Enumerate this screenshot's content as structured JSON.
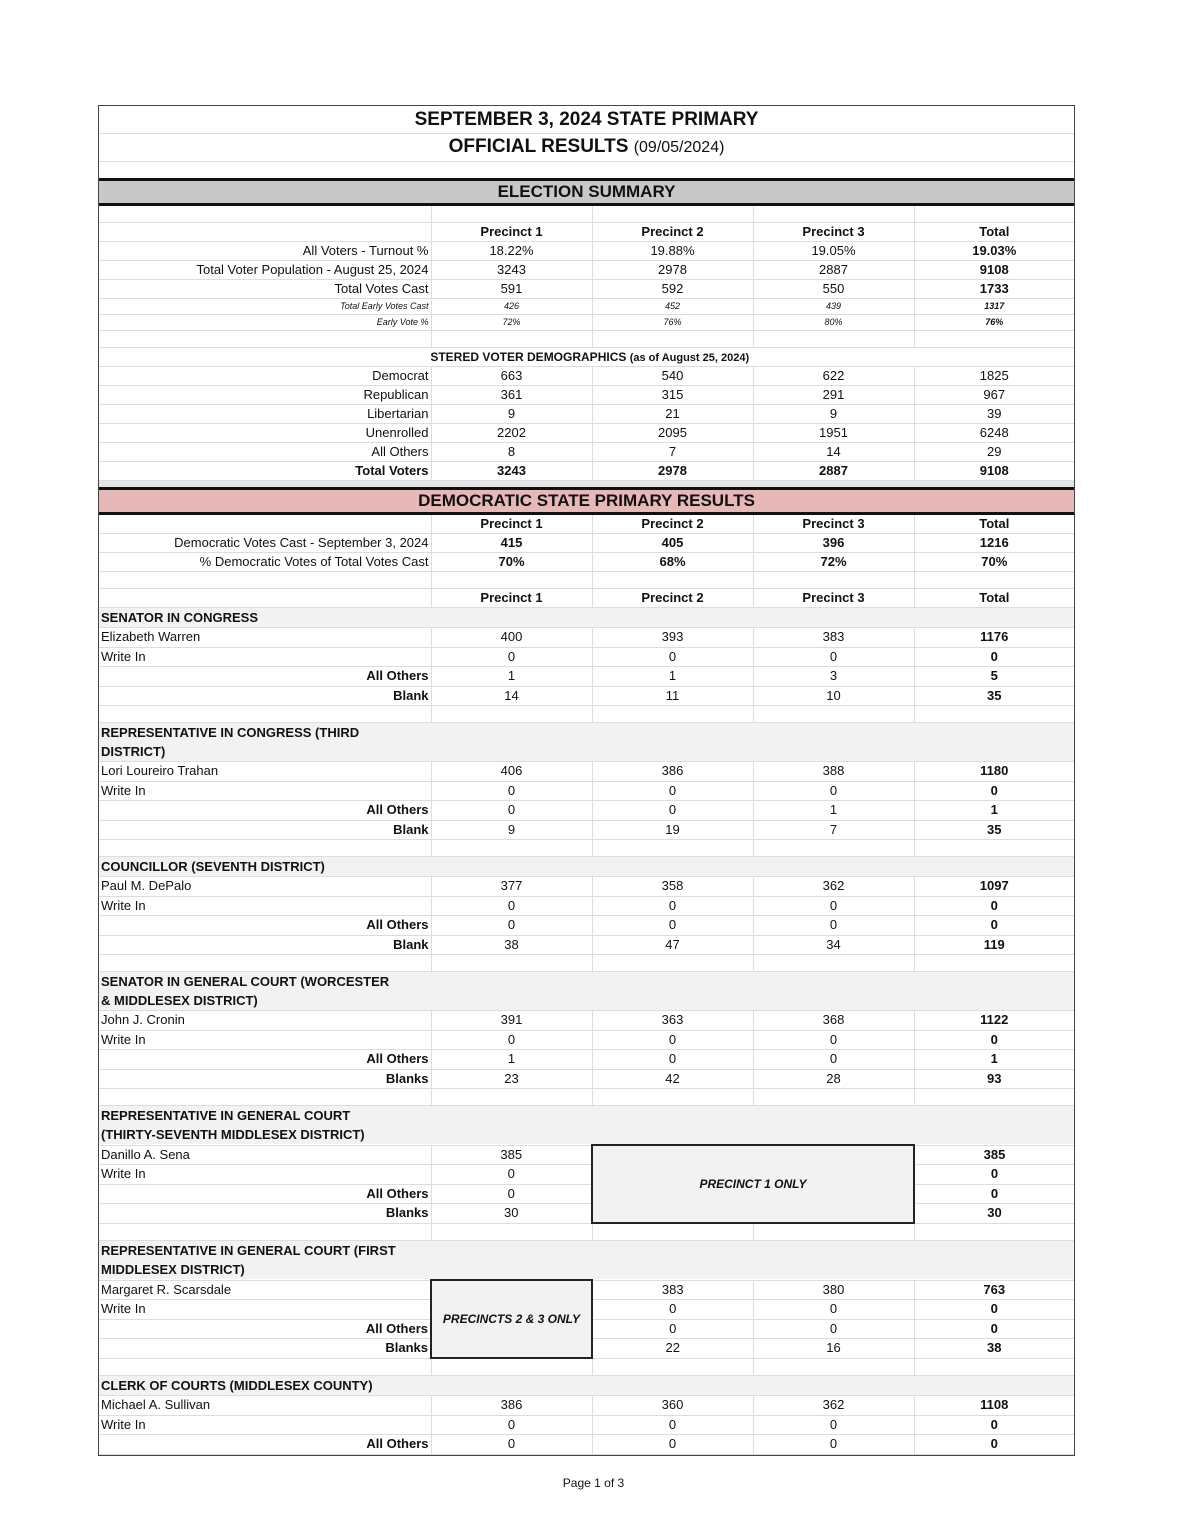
{
  "header": {
    "title": "SEPTEMBER 3, 2024 STATE PRIMARY",
    "subtitle": "OFFICIAL RESULTS",
    "subtitle_date": "(09/05/2024)"
  },
  "summary": {
    "banner": "ELECTION SUMMARY",
    "columns": [
      "Precinct 1",
      "Precinct 2",
      "Precinct 3",
      "Total"
    ],
    "rows": [
      {
        "label": "All Voters - Turnout  %",
        "values": [
          "18.22%",
          "19.88%",
          "19.05%",
          "19.03%"
        ],
        "style": "normal"
      },
      {
        "label": "Total Voter Population - August 25, 2024",
        "values": [
          "3243",
          "2978",
          "2887",
          "9108"
        ],
        "style": "normal"
      },
      {
        "label": "Total Votes Cast",
        "values": [
          "591",
          "592",
          "550",
          "1733"
        ],
        "style": "normal"
      },
      {
        "label": "Total Early Votes Cast",
        "values": [
          "426",
          "452",
          "439",
          "1317"
        ],
        "style": "small"
      },
      {
        "label": "Early Vote %",
        "values": [
          "72%",
          "76%",
          "80%",
          "76%"
        ],
        "style": "small"
      }
    ]
  },
  "demographics": {
    "title": "REGISTERED VOTER DEMOGRAPHICS",
    "note": "(as of August 25, 2024)",
    "rows": [
      {
        "label": "Democrat",
        "values": [
          "663",
          "540",
          "622",
          "1825"
        ]
      },
      {
        "label": "Republican",
        "values": [
          "361",
          "315",
          "291",
          "967"
        ]
      },
      {
        "label": "Libertarian",
        "values": [
          "9",
          "21",
          "9",
          "39"
        ]
      },
      {
        "label": "Unenrolled",
        "values": [
          "2202",
          "2095",
          "1951",
          "6248"
        ]
      },
      {
        "label": "All Others",
        "values": [
          "8",
          "7",
          "14",
          "29"
        ]
      }
    ],
    "total": {
      "label": "Total Voters",
      "values": [
        "3243",
        "2978",
        "2887",
        "9108"
      ]
    }
  },
  "democratic": {
    "banner": "DEMOCRATIC STATE PRIMARY RESULTS",
    "columns": [
      "Precinct 1",
      "Precinct 2",
      "Precinct 3",
      "Total"
    ],
    "rows": [
      {
        "label": "Democratic Votes Cast - September 3, 2024",
        "values": [
          "415",
          "405",
          "396",
          "1216"
        ]
      },
      {
        "label": "% Democratic Votes of Total Votes Cast",
        "values": [
          "70%",
          "68%",
          "72%",
          "70%"
        ]
      }
    ],
    "contest_columns": [
      "Precinct 1",
      "Precinct 2",
      "Precinct 3",
      "Total"
    ]
  },
  "contests": [
    {
      "title": "SENATOR IN CONGRESS",
      "rows": [
        {
          "label": "Elizabeth Warren",
          "values": [
            "400",
            "393",
            "383",
            "1176"
          ]
        },
        {
          "label": "Write In",
          "values": [
            "0",
            "0",
            "0",
            "0"
          ]
        },
        {
          "label": "All Others",
          "values": [
            "1",
            "1",
            "3",
            "5"
          ]
        },
        {
          "label": "Blank",
          "values": [
            "14",
            "11",
            "10",
            "35"
          ]
        }
      ]
    },
    {
      "title": "REPRESENTATIVE IN CONGRESS (THIRD DISTRICT)",
      "rows": [
        {
          "label": "Lori Loureiro Trahan",
          "values": [
            "406",
            "386",
            "388",
            "1180"
          ]
        },
        {
          "label": "Write In",
          "values": [
            "0",
            "0",
            "0",
            "0"
          ]
        },
        {
          "label": "All Others",
          "values": [
            "0",
            "0",
            "1",
            "1"
          ]
        },
        {
          "label": "Blank",
          "values": [
            "9",
            "19",
            "7",
            "35"
          ]
        }
      ]
    },
    {
      "title": "COUNCILLOR (SEVENTH DISTRICT)",
      "rows": [
        {
          "label": "Paul M. DePalo",
          "values": [
            "377",
            "358",
            "362",
            "1097"
          ]
        },
        {
          "label": "Write In",
          "values": [
            "0",
            "0",
            "0",
            "0"
          ]
        },
        {
          "label": "All Others",
          "values": [
            "0",
            "0",
            "0",
            "0"
          ]
        },
        {
          "label": "Blank",
          "values": [
            "38",
            "47",
            "34",
            "119"
          ]
        }
      ]
    },
    {
      "title": "SENATOR IN GENERAL COURT (WORCESTER & MIDDLESEX DISTRICT)",
      "rows": [
        {
          "label": "John J. Cronin",
          "values": [
            "391",
            "363",
            "368",
            "1122"
          ]
        },
        {
          "label": "Write In",
          "values": [
            "0",
            "0",
            "0",
            "0"
          ]
        },
        {
          "label": "All Others",
          "values": [
            "1",
            "0",
            "0",
            "1"
          ]
        },
        {
          "label": "Blanks",
          "values": [
            "23",
            "42",
            "28",
            "93"
          ]
        }
      ]
    },
    {
      "title": "REPRESENTATIVE IN GENERAL COURT (THIRTY-SEVENTH MIDDLESEX DISTRICT)",
      "note": "PRECINCT 1 ONLY",
      "note_precincts": [
        2,
        3
      ],
      "rows": [
        {
          "label": "Danillo A. Sena",
          "values": [
            "385",
            null,
            null,
            "385"
          ]
        },
        {
          "label": "Write In",
          "values": [
            "0",
            null,
            null,
            "0"
          ]
        },
        {
          "label": "All Others",
          "values": [
            "0",
            null,
            null,
            "0"
          ]
        },
        {
          "label": "Blanks",
          "values": [
            "30",
            null,
            null,
            "30"
          ]
        }
      ]
    },
    {
      "title": "REPRESENTATIVE IN GENERAL COURT (FIRST MIDDLESEX DISTRICT)",
      "note": "PRECINCTS 2 & 3 ONLY",
      "note_precincts": [
        1
      ],
      "rows": [
        {
          "label": "Margaret R. Scarsdale",
          "values": [
            null,
            "383",
            "380",
            "763"
          ]
        },
        {
          "label": "Write In",
          "values": [
            null,
            "0",
            "0",
            "0"
          ]
        },
        {
          "label": "All Others",
          "values": [
            null,
            "0",
            "0",
            "0"
          ]
        },
        {
          "label": "Blanks",
          "values": [
            null,
            "22",
            "16",
            "38"
          ]
        }
      ]
    },
    {
      "title": "CLERK OF COURTS (MIDDLESEX COUNTY)",
      "rows": [
        {
          "label": "Michael A. Sullivan",
          "values": [
            "386",
            "360",
            "362",
            "1108"
          ]
        },
        {
          "label": "Write In",
          "values": [
            "0",
            "0",
            "0",
            "0"
          ]
        },
        {
          "label": "All Others",
          "values": [
            "0",
            "0",
            "0",
            "0"
          ]
        }
      ]
    }
  ],
  "footer": {
    "page": "Page 1 of 3"
  }
}
